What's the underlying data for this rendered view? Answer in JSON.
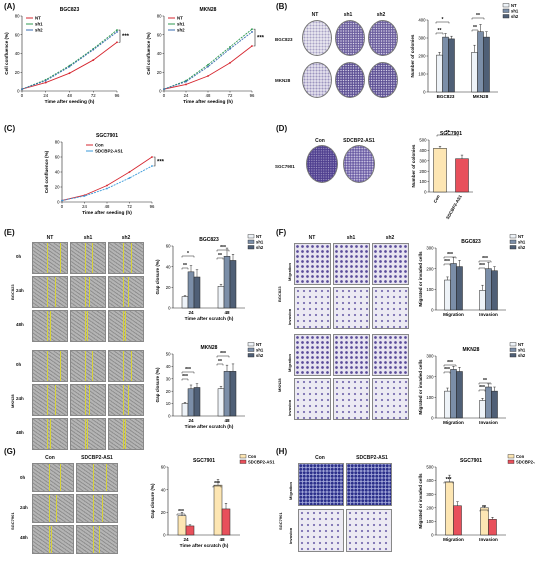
{
  "colors": {
    "NT": "#d6262f",
    "sh1": "#2f9a52",
    "sh2": "#3a6db0",
    "Con": "#d6262f",
    "SDC": "#3a9ad9",
    "barNT": "#eef3f8",
    "barSh1": "#7b8ea8",
    "barSh2": "#4f5f76",
    "barCon": "#fde6b3",
    "barSDC": "#e8505b"
  },
  "labels": {
    "A": "(A)",
    "B": "(B)",
    "C": "(C)",
    "D": "(D)",
    "E": "(E)",
    "F": "(F)",
    "G": "(G)",
    "H": "(H)"
  },
  "sig": {
    "s1": "*",
    "s2": "**",
    "s3": "***"
  },
  "panelB": {
    "cols": [
      "NT",
      "sh1",
      "sh2"
    ],
    "rows": [
      "BGC823",
      "MKN28"
    ]
  },
  "panelD": {
    "cols": [
      "Con",
      "SDCBP2-AS1"
    ],
    "row": "SGC7901"
  },
  "panelE": {
    "cols": [
      "NT",
      "sh1",
      "sh2"
    ],
    "times": [
      "0h",
      "24h",
      "48h"
    ],
    "cells": [
      "BGC823",
      "MKN28"
    ]
  },
  "panelF": {
    "cols": [
      "NT",
      "sh1",
      "sh2"
    ],
    "rows": [
      "Migration",
      "Invasion"
    ],
    "cells": [
      "BGC823",
      "MKN28"
    ]
  },
  "panelG": {
    "cols": [
      "Con",
      "SDCBP2-AS1"
    ],
    "times": [
      "0h",
      "24h",
      "48h"
    ],
    "cell": "SGC7901"
  },
  "panelH": {
    "cols": [
      "Con",
      "SDCBP2-AS1"
    ],
    "rows": [
      "Migration",
      "Invasion"
    ],
    "cell": "SGC7901"
  },
  "chart_data": [
    {
      "id": "A1",
      "type": "line",
      "title": "BGC823",
      "xlabel": "Time after seeding (h)",
      "ylabel": "Cell confluence (%)",
      "x": [
        0,
        24,
        48,
        72,
        96
      ],
      "xticks": [
        "0",
        "24",
        "48",
        "72",
        "96"
      ],
      "ylim": [
        0,
        80
      ],
      "yticks": [
        "0",
        "20",
        "40",
        "60",
        "80"
      ],
      "series": [
        {
          "name": "NT",
          "values": [
            2,
            9,
            19,
            33,
            52
          ]
        },
        {
          "name": "sh1",
          "values": [
            2,
            12,
            27,
            45,
            65
          ]
        },
        {
          "name": "sh2",
          "values": [
            2,
            11,
            26,
            44,
            63
          ]
        }
      ],
      "annotation": "***"
    },
    {
      "id": "A2",
      "type": "line",
      "title": "MKN28",
      "xlabel": "Time after seeding (h)",
      "ylabel": "Cell confluence (%)",
      "x": [
        0,
        24,
        48,
        72,
        96
      ],
      "xticks": [
        "0",
        "24",
        "48",
        "72",
        "96"
      ],
      "ylim": [
        0,
        80
      ],
      "yticks": [
        "0",
        "20",
        "40",
        "60",
        "80"
      ],
      "series": [
        {
          "name": "NT",
          "values": [
            2,
            7,
            16,
            30,
            48
          ]
        },
        {
          "name": "sh1",
          "values": [
            2,
            11,
            28,
            47,
            66
          ]
        },
        {
          "name": "sh2",
          "values": [
            2,
            10,
            26,
            45,
            63
          ]
        }
      ],
      "annotation": "***"
    },
    {
      "id": "B",
      "type": "bar",
      "ylabel": "Number of colonies",
      "categories": [
        "BGC823",
        "MKN28"
      ],
      "ylim": [
        0,
        400
      ],
      "yticks": [
        "0",
        "100",
        "200",
        "300",
        "400"
      ],
      "series": [
        {
          "name": "NT",
          "values": [
            205,
            220
          ],
          "err": [
            15,
            40
          ]
        },
        {
          "name": "sh1",
          "values": [
            305,
            335
          ],
          "err": [
            20,
            40
          ]
        },
        {
          "name": "sh2",
          "values": [
            295,
            305
          ],
          "err": [
            15,
            30
          ]
        }
      ]
    },
    {
      "id": "C",
      "type": "line",
      "title": "SGC7901",
      "xlabel": "Time after seeding (h)",
      "ylabel": "Cell confluence (%)",
      "x": [
        0,
        24,
        48,
        72,
        96
      ],
      "xticks": [
        "0",
        "24",
        "48",
        "72",
        "96"
      ],
      "ylim": [
        0,
        80
      ],
      "yticks": [
        "0",
        "20",
        "40",
        "60",
        "80"
      ],
      "series": [
        {
          "name": "Con",
          "values": [
            2,
            9,
            22,
            40,
            60
          ]
        },
        {
          "name": "SDCBP2-AS1",
          "values": [
            2,
            8,
            18,
            32,
            48
          ]
        }
      ],
      "annotation": "***"
    },
    {
      "id": "D",
      "type": "bar",
      "title": "SGC7901",
      "ylabel": "Number of colonies",
      "categories": [
        "Con",
        "SDCBP2-AS1"
      ],
      "ylim": [
        0,
        500
      ],
      "yticks": [
        "0",
        "100",
        "200",
        "300",
        "400",
        "500"
      ],
      "values": [
        420,
        320
      ],
      "err": [
        20,
        35
      ]
    },
    {
      "id": "E1",
      "type": "bar",
      "title": "BGC823",
      "xlabel": "Time after scratch (h)",
      "ylabel": "Gap closure (%)",
      "categories": [
        "24",
        "48"
      ],
      "ylim": [
        0,
        60
      ],
      "yticks": [
        "0",
        "20",
        "40",
        "60"
      ],
      "series": [
        {
          "name": "NT",
          "values": [
            11,
            21
          ],
          "err": [
            1,
            2
          ]
        },
        {
          "name": "sh1",
          "values": [
            35,
            50
          ],
          "err": [
            6,
            8
          ]
        },
        {
          "name": "sh2",
          "values": [
            30,
            46
          ],
          "err": [
            7,
            6
          ]
        }
      ]
    },
    {
      "id": "E2",
      "type": "bar",
      "title": "MKN28",
      "xlabel": "Time after scratch (h)",
      "ylabel": "Gap closure (%)",
      "categories": [
        "24",
        "48"
      ],
      "ylim": [
        0,
        50
      ],
      "yticks": [
        "0",
        "10",
        "20",
        "30",
        "40",
        "50"
      ],
      "series": [
        {
          "name": "NT",
          "values": [
            10,
            22
          ],
          "err": [
            1,
            2
          ]
        },
        {
          "name": "sh1",
          "values": [
            22,
            36
          ],
          "err": [
            3,
            5
          ]
        },
        {
          "name": "sh2",
          "values": [
            23,
            36
          ],
          "err": [
            3,
            6
          ]
        }
      ]
    },
    {
      "id": "F1",
      "type": "bar",
      "title": "BGC823",
      "ylabel": "Migrated or invaded cells",
      "categories": [
        "Migration",
        "Invasion"
      ],
      "ylim": [
        0,
        300
      ],
      "yticks": [
        "0",
        "100",
        "200",
        "300"
      ],
      "series": [
        {
          "name": "NT",
          "values": [
            145,
            95
          ],
          "err": [
            15,
            25
          ]
        },
        {
          "name": "sh1",
          "values": [
            225,
            200
          ],
          "err": [
            30,
            30
          ]
        },
        {
          "name": "sh2",
          "values": [
            210,
            190
          ],
          "err": [
            30,
            20
          ]
        }
      ]
    },
    {
      "id": "F2",
      "type": "bar",
      "title": "MKN28",
      "ylabel": "Migrated or invaded cells",
      "categories": [
        "Migration",
        "Invasion"
      ],
      "ylim": [
        0,
        300
      ],
      "yticks": [
        "0",
        "100",
        "200",
        "300"
      ],
      "series": [
        {
          "name": "NT",
          "values": [
            130,
            85
          ],
          "err": [
            15,
            10
          ]
        },
        {
          "name": "sh1",
          "values": [
            235,
            150
          ],
          "err": [
            15,
            15
          ]
        },
        {
          "name": "sh2",
          "values": [
            225,
            130
          ],
          "err": [
            20,
            20
          ]
        }
      ]
    },
    {
      "id": "G",
      "type": "bar",
      "title": "SGC7901",
      "xlabel": "Time after scratch (h)",
      "ylabel": "Gap closure (%)",
      "categories": [
        "24",
        "48"
      ],
      "ylim": [
        0,
        60
      ],
      "yticks": [
        "0",
        "20",
        "40",
        "60"
      ],
      "series": [
        {
          "name": "Con",
          "values": [
            17,
            44
          ],
          "err": [
            3,
            5
          ]
        },
        {
          "name": "SDCBP2-AS1",
          "values": [
            8,
            23
          ],
          "err": [
            1,
            5
          ]
        }
      ]
    },
    {
      "id": "H",
      "type": "bar",
      "title": "SGC7901",
      "ylabel": "Migrated or invaded cells",
      "categories": [
        "Migration",
        "Invasion"
      ],
      "ylim": [
        0,
        500
      ],
      "yticks": [
        "0",
        "100",
        "200",
        "300",
        "400",
        "500"
      ],
      "series": [
        {
          "name": "Con",
          "values": [
            390,
            200
          ],
          "err": [
            50,
            15
          ]
        },
        {
          "name": "SDCBP2-AS1",
          "values": [
            215,
            115
          ],
          "err": [
            30,
            15
          ]
        }
      ]
    }
  ]
}
